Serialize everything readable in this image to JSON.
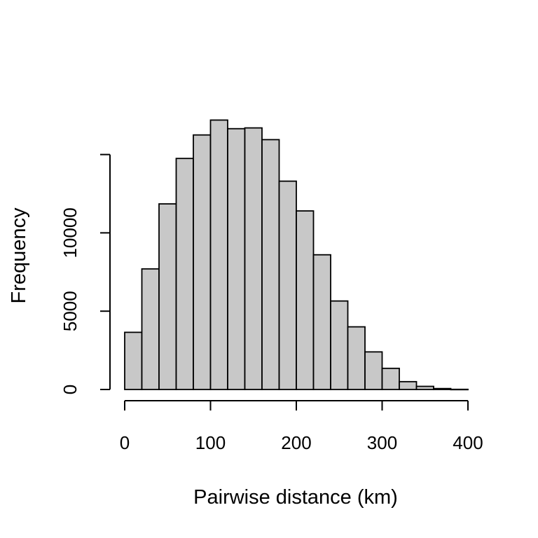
{
  "chart_data": {
    "type": "bar",
    "subtype": "histogram",
    "title": "",
    "xlabel": "Pairwise distance (km)",
    "ylabel": "Frequency",
    "bin_width": 20,
    "bins": [
      {
        "start": 0,
        "end": 20,
        "count": 3650
      },
      {
        "start": 20,
        "end": 40,
        "count": 7700
      },
      {
        "start": 40,
        "end": 60,
        "count": 11850
      },
      {
        "start": 60,
        "end": 80,
        "count": 14750
      },
      {
        "start": 80,
        "end": 100,
        "count": 16250
      },
      {
        "start": 100,
        "end": 120,
        "count": 17200
      },
      {
        "start": 120,
        "end": 140,
        "count": 16650
      },
      {
        "start": 140,
        "end": 160,
        "count": 16700
      },
      {
        "start": 160,
        "end": 180,
        "count": 15950
      },
      {
        "start": 180,
        "end": 200,
        "count": 13300
      },
      {
        "start": 200,
        "end": 220,
        "count": 11400
      },
      {
        "start": 220,
        "end": 240,
        "count": 8600
      },
      {
        "start": 240,
        "end": 260,
        "count": 5650
      },
      {
        "start": 260,
        "end": 280,
        "count": 4000
      },
      {
        "start": 280,
        "end": 300,
        "count": 2400
      },
      {
        "start": 300,
        "end": 320,
        "count": 1350
      },
      {
        "start": 320,
        "end": 340,
        "count": 500
      },
      {
        "start": 340,
        "end": 360,
        "count": 200
      },
      {
        "start": 360,
        "end": 380,
        "count": 60
      },
      {
        "start": 380,
        "end": 400,
        "count": 10
      }
    ],
    "xlim": [
      0,
      400
    ],
    "ylim": [
      0,
      17200
    ],
    "x_ticks": [
      0,
      100,
      200,
      300,
      400
    ],
    "x_tick_labels": [
      "0",
      "100",
      "200",
      "300",
      "400"
    ],
    "y_ticks": [
      0,
      5000,
      10000,
      15000
    ],
    "y_tick_labels": [
      "0",
      "5000",
      "10000",
      ""
    ],
    "grid": false,
    "legend": "none",
    "colors": {
      "bar_fill": "#c8c8c8",
      "bar_stroke": "#000000"
    }
  }
}
